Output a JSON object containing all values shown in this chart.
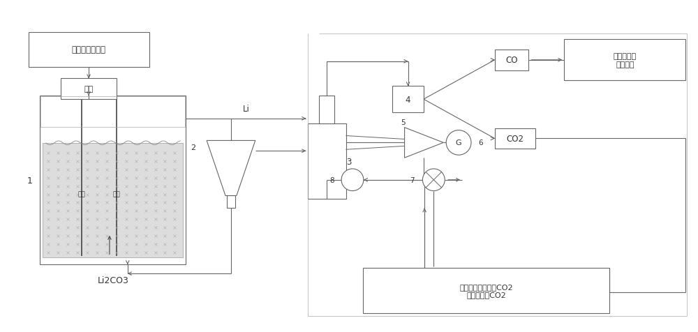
{
  "bg_color": "#ffffff",
  "line_color": "#666666",
  "text_color": "#333333",
  "fig_width": 10.0,
  "fig_height": 4.77,
  "labels": {
    "renewable": "可再生能源发电",
    "power": "电源",
    "anode": "阳极",
    "cathode": "阴极",
    "li2co3": "Li2CO3",
    "li": "Li",
    "co": "CO",
    "co2_label": "CO2",
    "industrial": "用作化工和\n冶金原料",
    "coal_co2": "来自燃煤电站烟气CO2\n捕集装置的CO2",
    "num1": "1",
    "num2": "2",
    "num3": "3",
    "num4": "4",
    "num5": "5",
    "num6": "6",
    "num7": "7",
    "num8": "8",
    "g_label": "G"
  }
}
